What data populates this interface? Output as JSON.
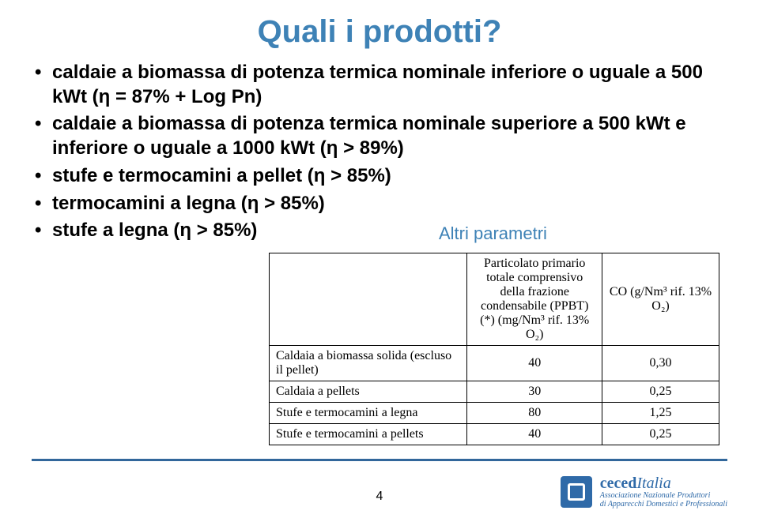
{
  "title": "Quali i prodotti?",
  "bullets": [
    "caldaie a biomassa di potenza termica nominale inferiore o uguale a 500 kWt (η = 87% + Log Pn)",
    "caldaie a biomassa di potenza termica nominale superiore a 500 kWt e inferiore o uguale a 1000 kWt (η > 89%)",
    "stufe e termocamini a pellet (η > 85%)",
    "termocamini a legna (η > 85%)",
    "stufe a legna (η > 85%)"
  ],
  "altri_label": "Altri parametri",
  "table": {
    "headers": [
      "",
      "Particolato primario totale comprensivo della frazione condensabile (PPBT) (*) (mg/Nm³ rif. 13% O₂)",
      "CO (g/Nm³ rif. 13% O₂)"
    ],
    "rows": [
      [
        "Caldaia a biomassa solida (escluso il pellet)",
        "40",
        "0,30"
      ],
      [
        "Caldaia a pellets",
        "30",
        "0,25"
      ],
      [
        "Stufe e termocamini a legna",
        "80",
        "1,25"
      ],
      [
        "Stufe e termocamini a pellets",
        "40",
        "0,25"
      ]
    ]
  },
  "page_number": "4",
  "logo": {
    "brand_prefix": "ceced",
    "brand_suffix": "Italia",
    "sub1": "Associazione Nazionale Produttori",
    "sub2": "di Apparecchi Domestici e Professionali"
  }
}
